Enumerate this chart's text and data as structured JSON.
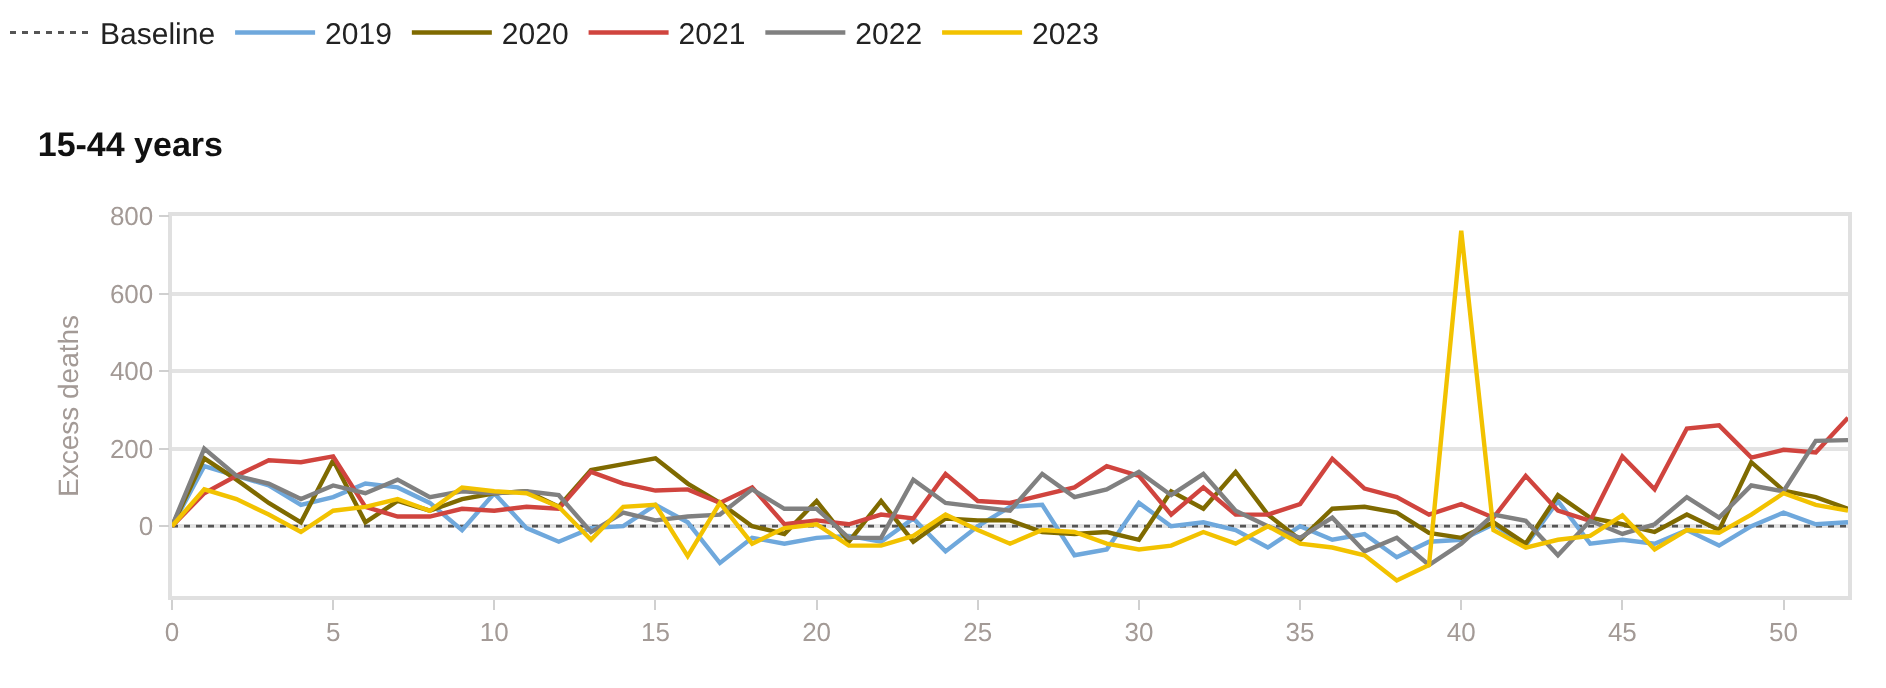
{
  "chart_data": {
    "type": "line",
    "title": "15-44 years",
    "ylabel": "Excess deaths",
    "x": [
      0,
      1,
      2,
      3,
      4,
      5,
      6,
      7,
      8,
      9,
      10,
      11,
      12,
      13,
      14,
      15,
      16,
      17,
      18,
      19,
      20,
      21,
      22,
      23,
      24,
      25,
      26,
      27,
      28,
      29,
      30,
      31,
      32,
      33,
      34,
      35,
      36,
      37,
      38,
      39,
      40,
      41,
      42,
      43,
      44,
      45,
      46,
      47,
      48,
      49,
      50,
      51,
      52
    ],
    "xlim": [
      0,
      52
    ],
    "xticks": [
      0,
      5,
      10,
      15,
      20,
      25,
      30,
      35,
      40,
      45,
      50
    ],
    "ylim": [
      -180,
      800
    ],
    "yticks": [
      0,
      200,
      400,
      600,
      800
    ],
    "grid": "y",
    "legend": "top left",
    "marker": "none",
    "series": [
      {
        "name": "Baseline",
        "color": "#555555",
        "line_style": "dotted",
        "values": [
          0,
          0,
          0,
          0,
          0,
          0,
          0,
          0,
          0,
          0,
          0,
          0,
          0,
          0,
          0,
          0,
          0,
          0,
          0,
          0,
          0,
          0,
          0,
          0,
          0,
          0,
          0,
          0,
          0,
          0,
          0,
          0,
          0,
          0,
          0,
          0,
          0,
          0,
          0,
          0,
          0,
          0,
          0,
          0,
          0,
          0,
          0,
          0,
          0,
          0,
          0,
          0,
          0
        ]
      },
      {
        "name": "2019",
        "color": "#6fa8dc",
        "line_style": "solid",
        "values": [
          0,
          155,
          130,
          105,
          55,
          75,
          110,
          100,
          60,
          -10,
          85,
          -5,
          -40,
          -5,
          0,
          55,
          10,
          -95,
          -30,
          -45,
          -30,
          -25,
          -40,
          20,
          -65,
          0,
          50,
          55,
          -75,
          -60,
          60,
          0,
          10,
          -10,
          -55,
          0,
          -35,
          -20,
          -80,
          -40,
          -35,
          5,
          -50,
          65,
          -45,
          -35,
          -45,
          -10,
          -50,
          0,
          35,
          5,
          10
        ]
      },
      {
        "name": "2020",
        "color": "#7f6a00",
        "line_style": "solid",
        "values": [
          0,
          175,
          120,
          60,
          10,
          170,
          10,
          65,
          40,
          70,
          85,
          90,
          50,
          145,
          160,
          175,
          110,
          60,
          0,
          -20,
          65,
          -40,
          65,
          -40,
          20,
          15,
          15,
          -15,
          -20,
          -15,
          -35,
          90,
          45,
          140,
          30,
          -35,
          45,
          50,
          35,
          -17,
          -30,
          10,
          -45,
          80,
          22,
          5,
          -15,
          30,
          -10,
          165,
          92,
          75,
          45
        ]
      },
      {
        "name": "2021",
        "color": "#d0443e",
        "line_style": "solid",
        "values": [
          0,
          85,
          130,
          170,
          165,
          180,
          50,
          25,
          25,
          45,
          40,
          50,
          45,
          140,
          110,
          92,
          95,
          60,
          100,
          5,
          15,
          5,
          30,
          20,
          135,
          65,
          60,
          80,
          100,
          155,
          130,
          30,
          100,
          30,
          30,
          57,
          174,
          97,
          75,
          30,
          57,
          22,
          130,
          40,
          14,
          180,
          95,
          252,
          260,
          177,
          197,
          190,
          280
        ]
      },
      {
        "name": "2022",
        "color": "#808080",
        "line_style": "solid",
        "values": [
          0,
          200,
          130,
          110,
          70,
          105,
          85,
          120,
          75,
          90,
          85,
          90,
          80,
          -15,
          35,
          15,
          25,
          30,
          95,
          45,
          45,
          -30,
          -30,
          120,
          60,
          50,
          40,
          135,
          75,
          95,
          140,
          80,
          135,
          40,
          0,
          -30,
          22,
          -65,
          -30,
          -100,
          -45,
          30,
          14,
          -75,
          14,
          -20,
          5,
          75,
          22,
          105,
          90,
          220,
          222
        ]
      },
      {
        "name": "2023",
        "color": "#f2c200",
        "line_style": "solid",
        "values": [
          0,
          95,
          70,
          30,
          -15,
          40,
          50,
          70,
          40,
          100,
          90,
          85,
          50,
          -35,
          50,
          55,
          -77,
          60,
          -45,
          -5,
          5,
          -50,
          -50,
          -25,
          30,
          -10,
          -45,
          -10,
          -15,
          -45,
          -60,
          -50,
          -15,
          -45,
          0,
          -45,
          -55,
          -75,
          -140,
          -100,
          762,
          -10,
          -55,
          -35,
          -25,
          28,
          -60,
          -10,
          -17,
          30,
          85,
          55,
          40
        ]
      }
    ]
  }
}
